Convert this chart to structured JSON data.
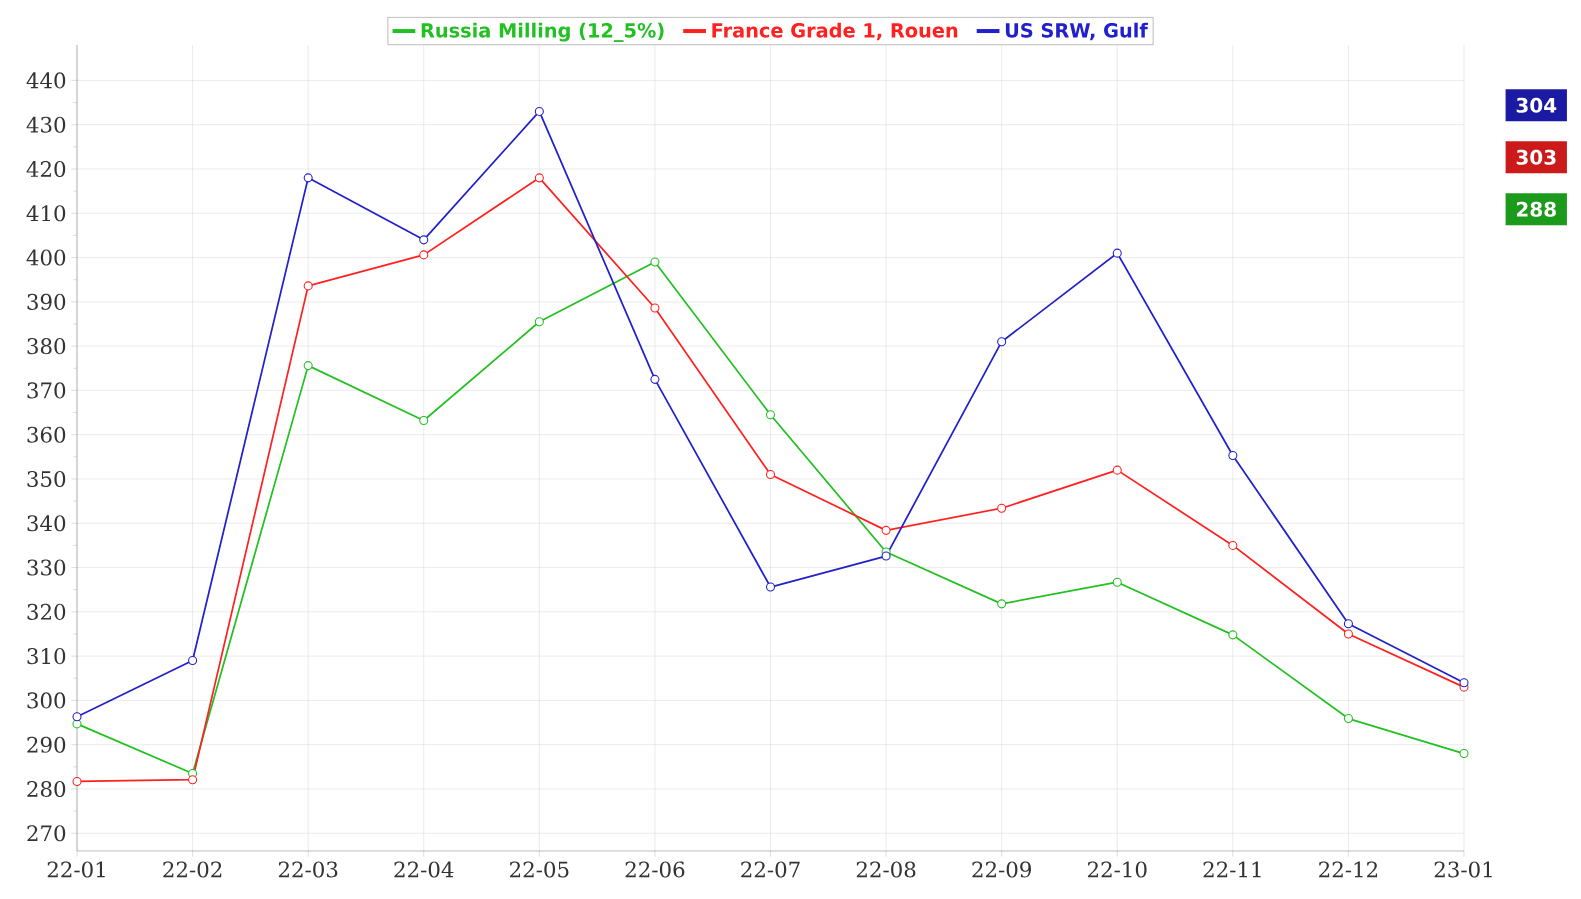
{
  "chart_data": {
    "type": "line",
    "categories": [
      "22-01",
      "22-02",
      "22-03",
      "22-04",
      "22-05",
      "22-06",
      "22-07",
      "22-08",
      "22-09",
      "22-10",
      "22-11",
      "22-12",
      "23-01"
    ],
    "series": [
      {
        "name": "Russia Milling (12_5%)",
        "color": "#22c022",
        "values": [
          294.7,
          283.5,
          375.6,
          363.2,
          385.5,
          399,
          364.5,
          333.5,
          321.8,
          326.7,
          314.8,
          295.9,
          288
        ]
      },
      {
        "name": "France Grade 1, Rouen",
        "color": "#ff2020",
        "values": [
          281.7,
          282.1,
          393.6,
          400.6,
          418,
          388.6,
          351,
          338.4,
          343.4,
          352,
          335,
          315,
          303
        ]
      },
      {
        "name": "US SRW, Gulf",
        "color": "#2020cc",
        "values": [
          296.3,
          309,
          418,
          404,
          433,
          372.5,
          325.6,
          332.6,
          381,
          401,
          355.3,
          317.3,
          304
        ]
      }
    ],
    "annotations": [
      "304",
      "303",
      "288"
    ],
    "ylim": [
      266,
      448
    ],
    "yticks": [
      270,
      280,
      290,
      300,
      310,
      320,
      330,
      340,
      350,
      360,
      370,
      380,
      390,
      400,
      410,
      420,
      430,
      440
    ],
    "grid": true,
    "legend": "top",
    "marker": "circle",
    "line_style": "solid"
  }
}
